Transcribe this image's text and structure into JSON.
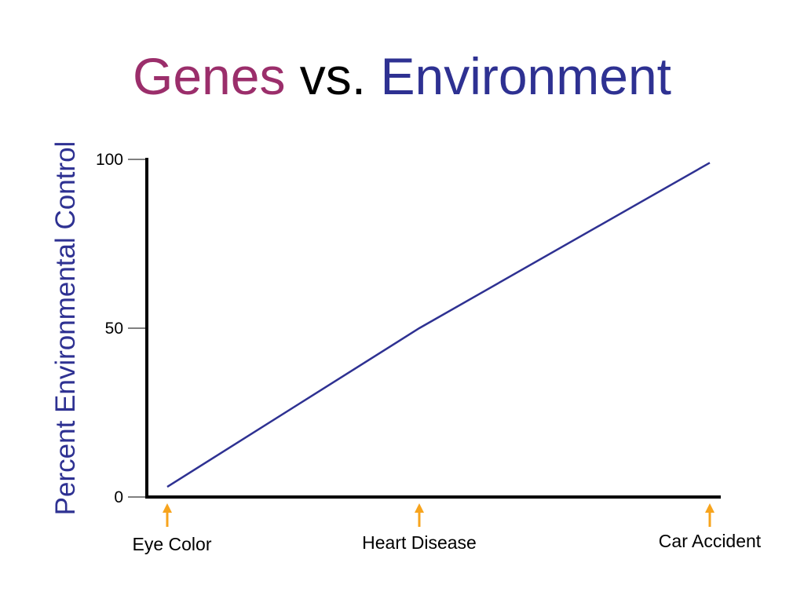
{
  "title": {
    "part1": "Genes",
    "part2": "vs.",
    "part3": "Environment",
    "colors": {
      "genes": "#9B2E6B",
      "vs": "#000000",
      "environment": "#2E3192"
    }
  },
  "chart_data": {
    "type": "line",
    "title": "Genes vs. Environment",
    "xlabel": "",
    "ylabel": "Percent Environmental Control",
    "ylim": [
      0,
      100
    ],
    "yticks": [
      0,
      50,
      100
    ],
    "categories": [
      "Eye Color",
      "Heart Disease",
      "Car Accident"
    ],
    "x": [
      "Eye Color",
      "Heart Disease",
      "Car Accident"
    ],
    "series": [
      {
        "values": [
          3,
          50,
          99
        ],
        "color": "#2E3192"
      }
    ],
    "category_markers": {
      "type": "arrow-up",
      "color": "#F7A41D"
    },
    "grid": false,
    "legend": "none"
  }
}
